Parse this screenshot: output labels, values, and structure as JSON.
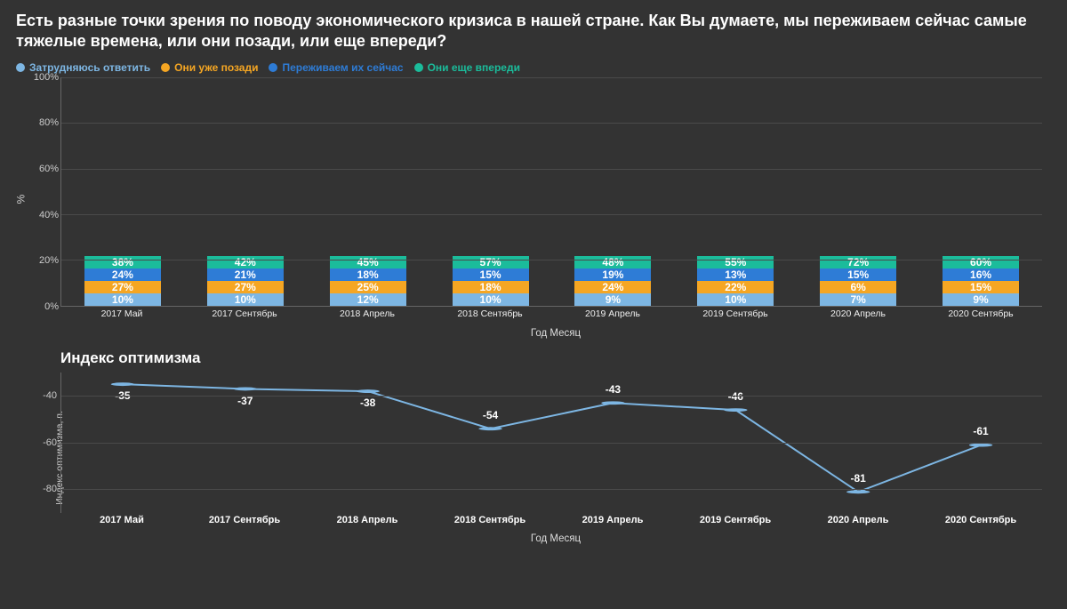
{
  "title": "Есть разные точки зрения по поводу экономического кризиса в нашей стране. Как Вы думаете, мы переживаем сейчас самые тяжелые времена, или они позади, или еще впереди?",
  "bar_chart": {
    "type": "stacked-bar-100",
    "y_label": "%",
    "x_label": "Год Месяц",
    "ylim": [
      0,
      100
    ],
    "ytick_step": 20,
    "background_color": "#333333",
    "grid_color": "#4a4a4a",
    "axis_color": "#666666",
    "tick_font_size": 11,
    "label_font_size": 12,
    "value_font_size": 12,
    "bar_width_pct": 78,
    "legend": [
      {
        "label": "Затрудняюсь ответить",
        "color": "#7db6e3"
      },
      {
        "label": "Они уже позади",
        "color": "#f5a623"
      },
      {
        "label": "Переживаем их сейчас",
        "color": "#2e7cd6"
      },
      {
        "label": "Они еще впереди",
        "color": "#1bbc9b"
      }
    ],
    "categories": [
      "2017 Май",
      "2017 Сентябрь",
      "2018 Апрель",
      "2018 Сентябрь",
      "2019 Апрель",
      "2019 Сентябрь",
      "2020 Апрель",
      "2020 Сентябрь"
    ],
    "series": {
      "dontknow": [
        10,
        10,
        12,
        10,
        9,
        10,
        7,
        9
      ],
      "behind": [
        27,
        27,
        25,
        18,
        24,
        22,
        6,
        15
      ],
      "now": [
        24,
        21,
        18,
        15,
        19,
        13,
        15,
        16
      ],
      "ahead": [
        38,
        42,
        45,
        57,
        48,
        55,
        72,
        60
      ]
    },
    "series_order": [
      "dontknow",
      "behind",
      "now",
      "ahead"
    ],
    "series_colors": {
      "dontknow": "#7db6e3",
      "behind": "#f5a623",
      "now": "#2e7cd6",
      "ahead": "#1bbc9b"
    }
  },
  "line_chart": {
    "type": "line",
    "title": "Индекс оптимизма",
    "y_label": "Индекс оптимизма, п.",
    "x_label": "Год Месяц",
    "ylim": [
      -90,
      -30
    ],
    "yticks": [
      -40,
      -60,
      -80
    ],
    "line_color": "#7db6e3",
    "line_width": 2,
    "marker": "circle",
    "marker_size": 5,
    "marker_color": "#7db6e3",
    "grid_color": "#4a4a4a",
    "axis_color": "#666666",
    "tick_font_size": 11,
    "value_font_size": 12,
    "categories": [
      "2017 Май",
      "2017 Сентябрь",
      "2018 Апрель",
      "2018 Сентябрь",
      "2019 Апрель",
      "2019 Сентябрь",
      "2020 Апрель",
      "2020 Сентябрь"
    ],
    "values": [
      -35,
      -37,
      -38,
      -54,
      -43,
      -46,
      -81,
      -61
    ]
  }
}
